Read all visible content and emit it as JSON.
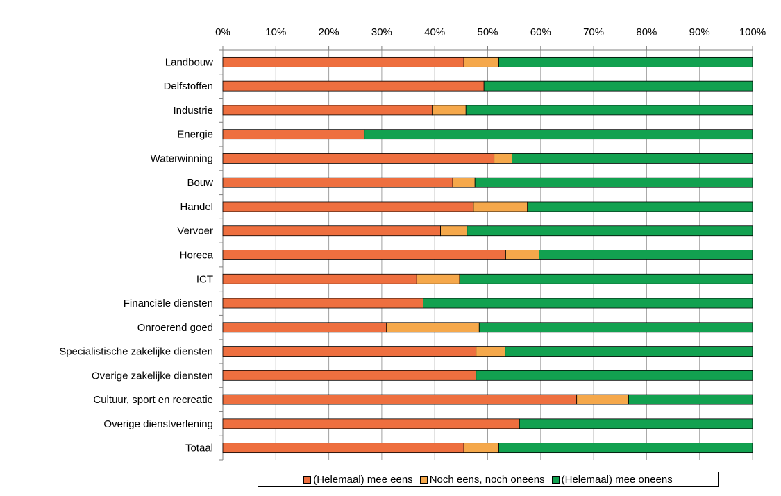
{
  "colors": {
    "agree": "#EE6F3F",
    "neutral": "#F5A84B",
    "disagree": "#12A150",
    "grid": "#a0a0a0",
    "axis": "#808080"
  },
  "chart_data": {
    "type": "bar",
    "orientation": "horizontal",
    "stacked": true,
    "percent_stacked": true,
    "categories": [
      "Landbouw",
      "Delfstoffen",
      "Industrie",
      "Energie",
      "Waterwinning",
      "Bouw",
      "Handel",
      "Vervoer",
      "Horeca",
      "ICT",
      "Financiële diensten",
      "Onroerend goed",
      "Specialistische zakelijke diensten",
      "Overige zakelijke diensten",
      "Cultuur, sport en recreatie",
      "Overige dienstverlening",
      "Totaal"
    ],
    "series": [
      {
        "name": "(Helemaal) mee eens",
        "values": [
          45.5,
          49.3,
          39.5,
          26.7,
          51.2,
          43.4,
          47.3,
          41.1,
          53.4,
          36.6,
          37.8,
          30.9,
          47.8,
          47.8,
          66.8,
          56.0,
          45.5
        ],
        "color": "#EE6F3F"
      },
      {
        "name": "Noch eens, noch oneens",
        "values": [
          6.6,
          0.0,
          6.4,
          0.0,
          3.4,
          4.2,
          10.2,
          5.0,
          6.3,
          8.1,
          0.0,
          17.5,
          5.5,
          0.0,
          9.8,
          0.0,
          6.6
        ],
        "color": "#F5A84B"
      },
      {
        "name": "(Helemaal) mee oneens",
        "values": [
          47.9,
          50.7,
          54.1,
          73.3,
          45.4,
          52.4,
          42.5,
          53.9,
          40.3,
          55.3,
          62.2,
          51.6,
          46.7,
          52.2,
          23.4,
          44.0,
          47.9
        ],
        "color": "#12A150"
      }
    ],
    "x_ticks": [
      "0%",
      "10%",
      "20%",
      "30%",
      "40%",
      "50%",
      "60%",
      "70%",
      "80%",
      "90%",
      "100%"
    ],
    "xlim": [
      0,
      100
    ],
    "x_axis_position": "top",
    "grid": true,
    "legend_position": "bottom"
  }
}
